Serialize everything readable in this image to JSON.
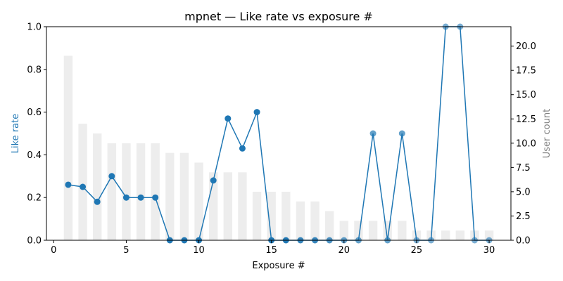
{
  "chart_data": {
    "type": "line",
    "title": "mpnet — Like rate vs exposure #",
    "xlabel": "Exposure #",
    "ylabel": "Like rate",
    "ylabel_right": "User count",
    "xlim": [
      -0.5,
      31.5
    ],
    "ylim": [
      0,
      1.0
    ],
    "ylim_right": [
      0,
      22
    ],
    "x_ticks": [
      0,
      5,
      10,
      15,
      20,
      25,
      30
    ],
    "y_ticks": [
      0.0,
      0.2,
      0.4,
      0.6,
      0.8,
      1.0
    ],
    "y_ticks_right": [
      0.0,
      2.5,
      5.0,
      7.5,
      10.0,
      12.5,
      15.0,
      17.5,
      20.0
    ],
    "grid": false,
    "legend": "none",
    "series": [
      {
        "axis": "left",
        "kind": "line",
        "color": "#1f77b4",
        "x": [
          1,
          2,
          3,
          4,
          5,
          6,
          7,
          8,
          9,
          10,
          11,
          12,
          13,
          14,
          15,
          16,
          17,
          18,
          19,
          20,
          21,
          22,
          23,
          24,
          25,
          26,
          27,
          28,
          29,
          30
        ],
        "values": [
          0.26,
          0.25,
          0.18,
          0.3,
          0.2,
          0.2,
          0.2,
          0,
          0,
          0,
          0.28,
          0.57,
          0.43,
          0.6,
          0,
          0,
          0,
          0,
          0,
          0,
          0,
          0.5,
          0,
          0.5,
          0,
          0,
          1.0,
          1.0,
          0,
          0
        ]
      },
      {
        "axis": "right",
        "kind": "bar",
        "color": "#d3d3d3",
        "x": [
          1,
          2,
          3,
          4,
          5,
          6,
          7,
          8,
          9,
          10,
          11,
          12,
          13,
          14,
          15,
          16,
          17,
          18,
          19,
          20,
          21,
          22,
          23,
          24,
          25,
          26,
          27,
          28,
          29,
          30
        ],
        "values": [
          19,
          12,
          11,
          10,
          10,
          10,
          10,
          9,
          9,
          8,
          7,
          7,
          7,
          5,
          5,
          5,
          4,
          4,
          3,
          2,
          2,
          2,
          2,
          2,
          1,
          1,
          1,
          1,
          1,
          1
        ]
      }
    ]
  }
}
